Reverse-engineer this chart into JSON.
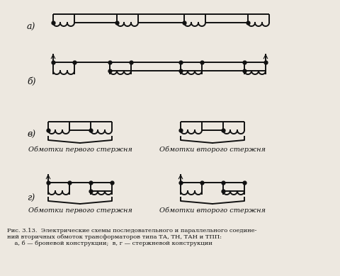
{
  "bg_color": "#ede8e0",
  "line_color": "#111111",
  "lw": 1.4,
  "fig_w": 4.8,
  "fig_h": 3.9,
  "dpi": 100,
  "label_a": "а)",
  "label_b": "б)",
  "label_v": "в)",
  "label_g": "г)",
  "label_obm1": "Обмотки первого стержня",
  "label_obm2": "Обмотки второго стержня",
  "caption": "Рис. 3.13.  Электрические схемы последовательного и параллельного соедине-\nний вторичных обмоток трансформаторов типа ТА, ТН, ТАН и ТПП:\n    а, б — броневой конструкции;  в, г — стержневой конструкции"
}
